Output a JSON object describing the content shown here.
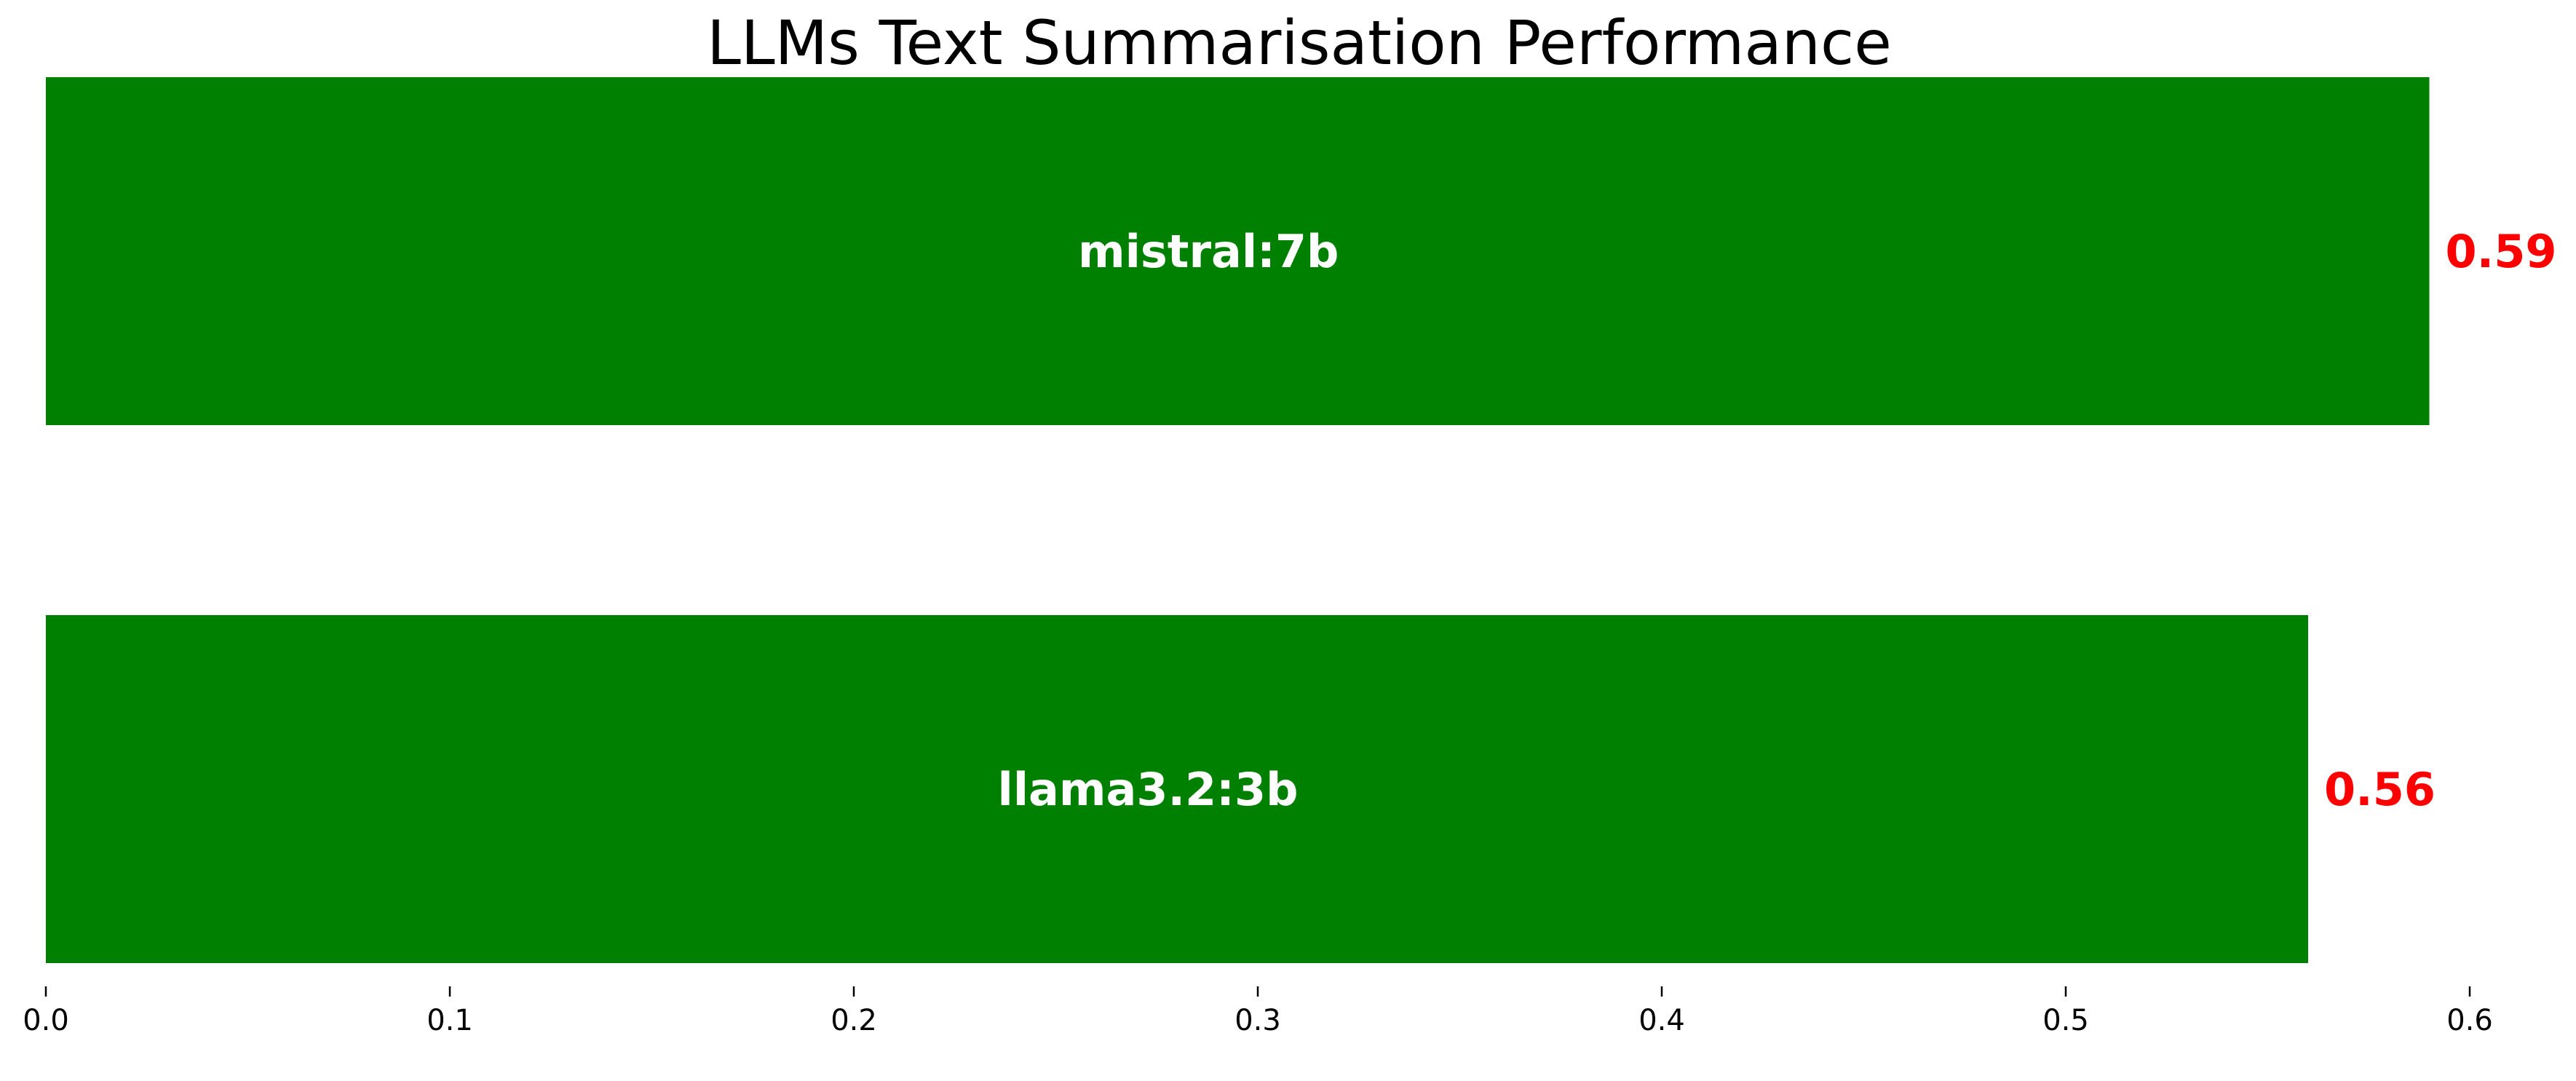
{
  "chart_data": {
    "type": "bar",
    "orientation": "horizontal",
    "title": "LLMs Text Summarisation Performance",
    "xlabel": "",
    "ylabel": "",
    "categories": [
      "mistral:7b",
      "llama3.2:3b"
    ],
    "values": [
      0.59,
      0.56
    ],
    "value_labels": [
      "0.59",
      "0.56"
    ],
    "xlim": [
      0,
      0.6
    ],
    "xticks": [
      0.0,
      0.1,
      0.2,
      0.3,
      0.4,
      0.5,
      0.6
    ],
    "xtick_labels": [
      "0.0",
      "0.1",
      "0.2",
      "0.3",
      "0.4",
      "0.5",
      "0.6"
    ],
    "grid": false,
    "legend": "none",
    "colors": {
      "bar": "#008000",
      "bar_label": "#ffffff",
      "value_label": "#ff0000",
      "axis": "#000000"
    }
  }
}
